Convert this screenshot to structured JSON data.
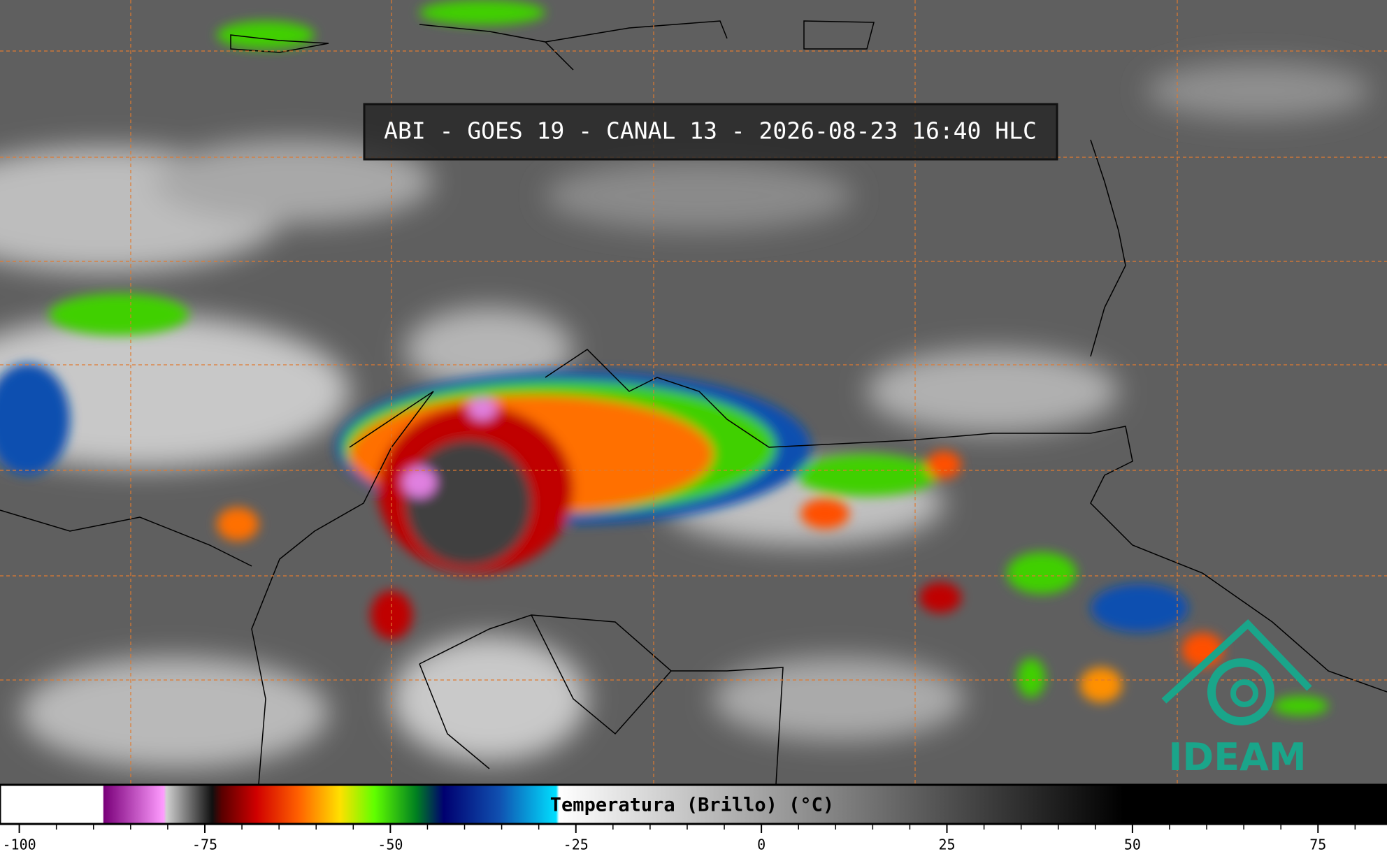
{
  "header": {
    "title": "ABI - GOES 19 - CANAL 13 - 2026-08-23 16:40 HLC"
  },
  "colorbar": {
    "label": "Temperatura (Brillo) (°C)",
    "lim": [
      -102.6,
      84.3
    ],
    "ticks": [
      -100,
      -75,
      -50,
      -25,
      0,
      25,
      50,
      75
    ],
    "minor_ticks": [
      -95,
      -90,
      -85,
      -80,
      -70,
      -65,
      -60,
      -55,
      -45,
      -40,
      -35,
      -30,
      -20,
      -15,
      -10,
      -5,
      5,
      10,
      15,
      20,
      30,
      35,
      40,
      45,
      55,
      60,
      65,
      70,
      80
    ]
  },
  "logo": {
    "text": "IDEAM"
  }
}
